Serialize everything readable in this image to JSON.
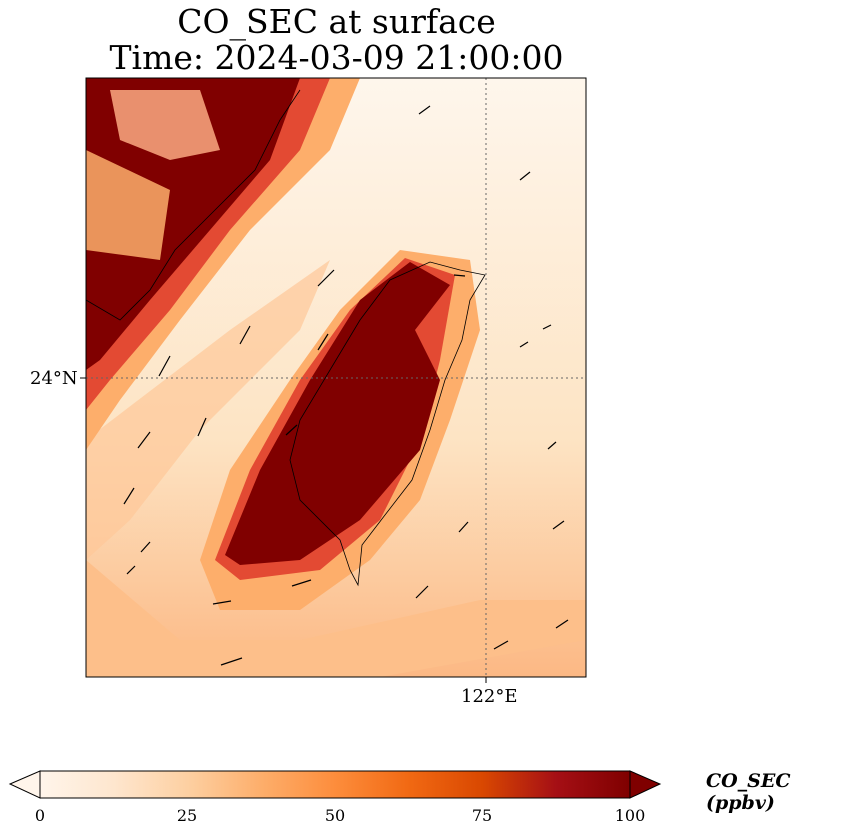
{
  "title": {
    "line1": "CO_SEC at surface",
    "line2": "Time: 2024-03-09 21:00:00"
  },
  "axes": {
    "y_tick_label": "24°N",
    "x_tick_label": "122°E"
  },
  "colorbar": {
    "label": "CO_SEC (ppbv)",
    "ticks": [
      "0",
      "25",
      "50",
      "75",
      "100"
    ],
    "min": 0,
    "max": 100,
    "extend": "both",
    "colormap": [
      "#fff5eb",
      "#fee6ce",
      "#fdd0a2",
      "#fdae6b",
      "#fd8d3c",
      "#f16913",
      "#d94801",
      "#a50f15",
      "#7f0000"
    ]
  },
  "colors": {
    "high": "#800000",
    "mid": "#e34a33",
    "low": "#fdd49e",
    "background": "#fef0dd"
  }
}
